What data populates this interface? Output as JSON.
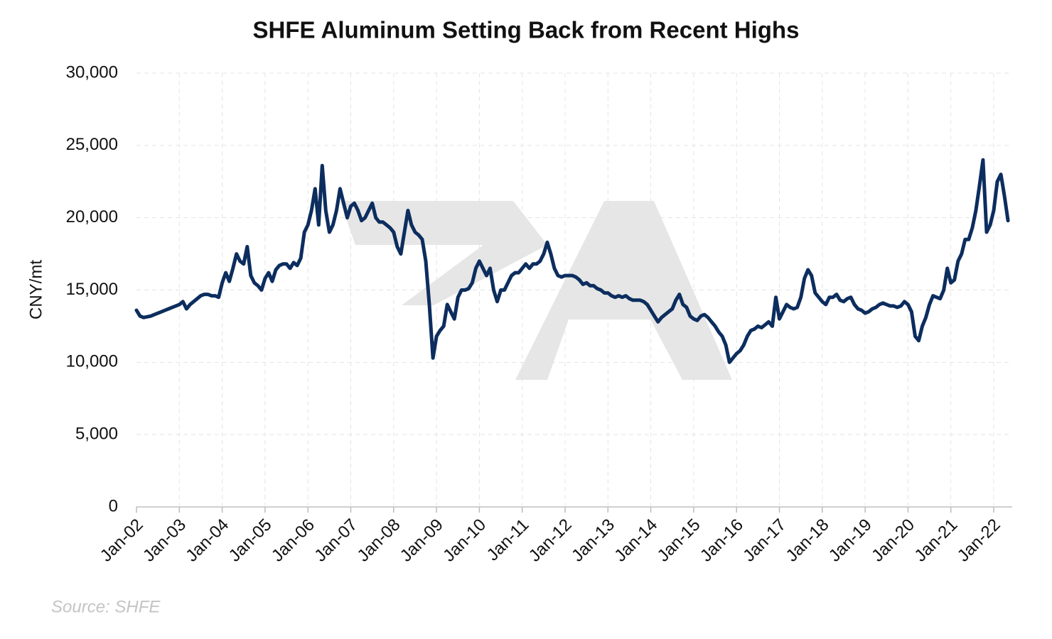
{
  "chart_data": {
    "type": "line",
    "title": "SHFE Aluminum Setting Back from Recent Highs",
    "y_label": "CNY/mt",
    "source": "Source: SHFE",
    "categories": [
      "Jan-02",
      null,
      null,
      null,
      null,
      null,
      null,
      null,
      null,
      null,
      null,
      null,
      "Jan-03",
      null,
      null,
      null,
      null,
      null,
      null,
      null,
      null,
      null,
      null,
      null,
      "Jan-04",
      null,
      null,
      null,
      null,
      null,
      null,
      null,
      null,
      null,
      null,
      null,
      "Jan-05",
      null,
      null,
      null,
      null,
      null,
      null,
      null,
      null,
      null,
      null,
      null,
      "Jan-06",
      null,
      null,
      null,
      null,
      null,
      null,
      null,
      null,
      null,
      null,
      null,
      "Jan-07",
      null,
      null,
      null,
      null,
      null,
      null,
      null,
      null,
      null,
      null,
      null,
      "Jan-08",
      null,
      null,
      null,
      null,
      null,
      null,
      null,
      null,
      null,
      null,
      null,
      "Jan-09",
      null,
      null,
      null,
      null,
      null,
      null,
      null,
      null,
      null,
      null,
      null,
      "Jan-10",
      null,
      null,
      null,
      null,
      null,
      null,
      null,
      null,
      null,
      null,
      null,
      "Jan-11",
      null,
      null,
      null,
      null,
      null,
      null,
      null,
      null,
      null,
      null,
      null,
      "Jan-12",
      null,
      null,
      null,
      null,
      null,
      null,
      null,
      null,
      null,
      null,
      null,
      "Jan-13",
      null,
      null,
      null,
      null,
      null,
      null,
      null,
      null,
      null,
      null,
      null,
      "Jan-14",
      null,
      null,
      null,
      null,
      null,
      null,
      null,
      null,
      null,
      null,
      null,
      "Jan-15",
      null,
      null,
      null,
      null,
      null,
      null,
      null,
      null,
      null,
      null,
      null,
      "Jan-16",
      null,
      null,
      null,
      null,
      null,
      null,
      null,
      null,
      null,
      null,
      null,
      "Jan-17",
      null,
      null,
      null,
      null,
      null,
      null,
      null,
      null,
      null,
      null,
      null,
      "Jan-18",
      null,
      null,
      null,
      null,
      null,
      null,
      null,
      null,
      null,
      null,
      null,
      "Jan-19",
      null,
      null,
      null,
      null,
      null,
      null,
      null,
      null,
      null,
      null,
      null,
      "Jan-20",
      null,
      null,
      null,
      null,
      null,
      null,
      null,
      null,
      null,
      null,
      null,
      "Jan-21",
      null,
      null,
      null,
      null,
      null,
      null,
      null,
      null,
      null,
      null,
      null,
      "Jan-22",
      null,
      null,
      null,
      null
    ],
    "series": [
      {
        "name": "SHFE Aluminum",
        "color": "#0c2d5e",
        "values": [
          13600,
          13200,
          13100,
          13150,
          13200,
          13300,
          13400,
          13500,
          13600,
          13700,
          13800,
          13900,
          14000,
          14200,
          13700,
          14000,
          14200,
          14400,
          14600,
          14700,
          14700,
          14600,
          14600,
          14500,
          15500,
          16200,
          15600,
          16500,
          17500,
          17000,
          16800,
          18000,
          16000,
          15500,
          15300,
          15000,
          15800,
          16200,
          15600,
          16400,
          16700,
          16800,
          16800,
          16500,
          16900,
          16700,
          17200,
          19000,
          19500,
          20500,
          22000,
          19500,
          23600,
          20500,
          19000,
          19500,
          20500,
          22000,
          21000,
          20000,
          20800,
          21000,
          20500,
          19800,
          20000,
          20500,
          21000,
          20000,
          19700,
          19700,
          19500,
          19300,
          19000,
          18000,
          17500,
          19000,
          20500,
          19500,
          19000,
          18800,
          18500,
          17000,
          14000,
          10300,
          11800,
          12200,
          12500,
          14000,
          13500,
          13000,
          14500,
          15000,
          15000,
          15100,
          15500,
          16500,
          17000,
          16500,
          16000,
          16500,
          15000,
          14200,
          15000,
          15000,
          15500,
          16000,
          16200,
          16200,
          16500,
          16800,
          16500,
          16800,
          16800,
          17000,
          17500,
          18300,
          17500,
          16500,
          16000,
          15900,
          16000,
          16000,
          16000,
          15900,
          15700,
          15400,
          15500,
          15300,
          15300,
          15100,
          15000,
          14800,
          14800,
          14600,
          14500,
          14600,
          14500,
          14600,
          14400,
          14300,
          14300,
          14300,
          14200,
          14000,
          13600,
          13200,
          12800,
          13100,
          13300,
          13500,
          13700,
          14300,
          14700,
          14000,
          13800,
          13200,
          13000,
          12900,
          13200,
          13300,
          13100,
          12800,
          12500,
          12100,
          11800,
          11200,
          10000,
          10300,
          10600,
          10800,
          11200,
          11800,
          12200,
          12300,
          12500,
          12400,
          12600,
          12800,
          12500,
          14500,
          13000,
          13500,
          14000,
          13800,
          13700,
          13800,
          14500,
          15800,
          16400,
          16000,
          14800,
          14500,
          14200,
          14000,
          14500,
          14500,
          14700,
          14300,
          14200,
          14400,
          14500,
          14000,
          13700,
          13600,
          13400,
          13500,
          13700,
          13800,
          14000,
          14100,
          14000,
          13900,
          13900,
          13800,
          13900,
          14200,
          14000,
          13500,
          11800,
          11500,
          12500,
          13100,
          14000,
          14600,
          14500,
          14400,
          15000,
          16500,
          15500,
          15700,
          17000,
          17500,
          18500,
          18500,
          19300,
          20500,
          22200,
          24000,
          19000,
          19500,
          20500,
          22500,
          23000,
          21500,
          19800
        ]
      }
    ],
    "ylim": [
      0,
      30000
    ],
    "yticks": [
      0,
      {
        "value": 5000,
        "label": "5,000"
      },
      {
        "value": 10000,
        "label": "10,000"
      },
      {
        "value": 15000,
        "label": "15,000"
      },
      {
        "value": 20000,
        "label": "20,000"
      },
      {
        "value": 25000,
        "label": "25,000"
      },
      {
        "value": 30000,
        "label": "30,000"
      }
    ],
    "grid": true
  }
}
